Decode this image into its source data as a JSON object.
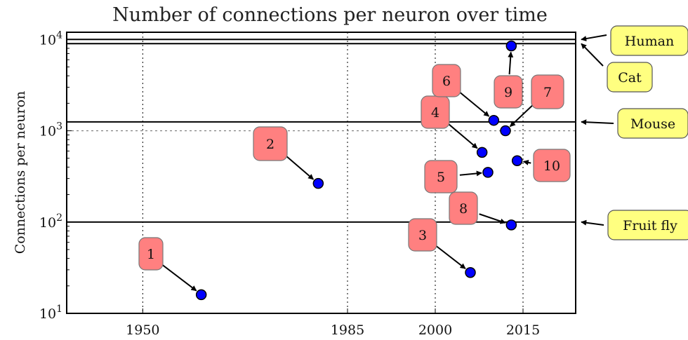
{
  "chart_data": {
    "type": "scatter",
    "title": "Number of connections per neuron over time",
    "xlabel": "",
    "ylabel": "Connections per neuron",
    "y_scale": "log",
    "xlim": [
      1937,
      2024
    ],
    "ylim": [
      10,
      12000
    ],
    "x_ticks": [
      {
        "value": 1950,
        "label": "1950"
      },
      {
        "value": 1985,
        "label": "1985"
      },
      {
        "value": 2000,
        "label": "2000"
      },
      {
        "value": 2015,
        "label": "2015"
      }
    ],
    "y_ticks": [
      {
        "value": 10,
        "base": "10",
        "exp": "1"
      },
      {
        "value": 100,
        "base": "10",
        "exp": "2"
      },
      {
        "value": 1000,
        "base": "10",
        "exp": "3"
      },
      {
        "value": 10000,
        "base": "10",
        "exp": "4"
      }
    ],
    "grid": "dotted",
    "marker_color": "#0000ff",
    "points": [
      {
        "label": "1",
        "x": 1960,
        "y": 16
      },
      {
        "label": "2",
        "x": 1980,
        "y": 265
      },
      {
        "label": "3",
        "x": 2006,
        "y": 28
      },
      {
        "label": "4",
        "x": 2008,
        "y": 580
      },
      {
        "label": "5",
        "x": 2009,
        "y": 350
      },
      {
        "label": "6",
        "x": 2010,
        "y": 1300
      },
      {
        "label": "7",
        "x": 2012,
        "y": 1000
      },
      {
        "label": "8",
        "x": 2013,
        "y": 93
      },
      {
        "label": "9",
        "x": 2013,
        "y": 8500
      },
      {
        "label": "10",
        "x": 2014,
        "y": 470
      }
    ],
    "reference_lines": [
      {
        "label": "Fruit fly",
        "y": 100
      },
      {
        "label": "Mouse",
        "y": 1250
      },
      {
        "label": "Cat",
        "y": 9000
      },
      {
        "label": "Human",
        "y": 10000
      }
    ],
    "dashed_line_y": 1000,
    "point_label_color": "#ff8080",
    "reference_label_color": "#ffff80"
  }
}
